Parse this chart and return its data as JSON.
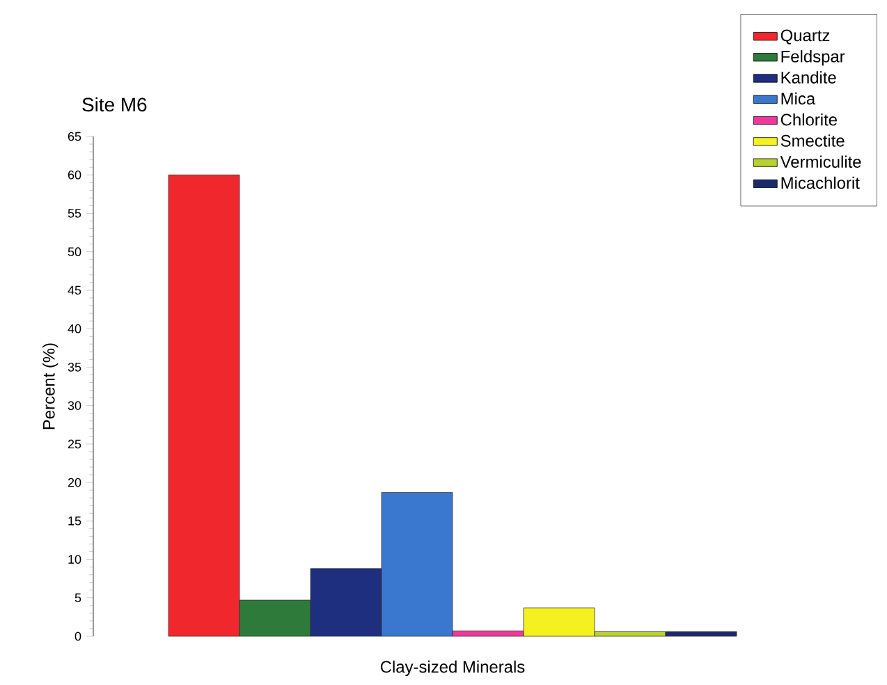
{
  "chart_data": {
    "type": "bar",
    "title": "Site M6",
    "xlabel": "Clay-sized Minerals",
    "ylabel": "Percent (%)",
    "categories": [
      null
    ],
    "series": [
      {
        "name": "Quartz",
        "color": "#f0282e",
        "values": [
          60
        ]
      },
      {
        "name": "Feldspar",
        "color": "#2e7a3a",
        "values": [
          4.7
        ]
      },
      {
        "name": "Kandite",
        "color": "#1e2f80",
        "values": [
          8.8
        ]
      },
      {
        "name": "Mica",
        "color": "#3a78d0",
        "values": [
          18.7
        ]
      },
      {
        "name": "Chlorite",
        "color": "#f0389a",
        "values": [
          0.7
        ]
      },
      {
        "name": "Smectite",
        "color": "#f5f020",
        "values": [
          3.7
        ]
      },
      {
        "name": "Vermiculite",
        "color": "#b8d030",
        "values": [
          0.6
        ]
      },
      {
        "name": "Micachlorit",
        "color": "#1c2a6c",
        "values": [
          0.6
        ]
      }
    ],
    "ylim": [
      0,
      65
    ],
    "yticks": [
      0,
      5,
      10,
      15,
      20,
      25,
      30,
      35,
      40,
      45,
      50,
      55,
      60,
      65
    ],
    "legend": "top right"
  }
}
